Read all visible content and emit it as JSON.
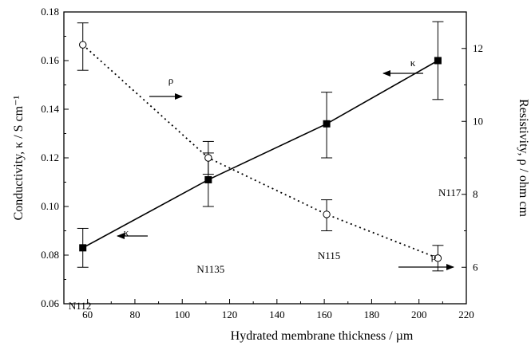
{
  "chart_data": {
    "type": "line",
    "xlabel": "Hydrated membrane thickness / µm",
    "ylabel_left": "Conductivity, κ / S cm⁻¹",
    "ylabel_right": "Resistivity, ρ / ohm cm",
    "xlim": [
      50,
      220
    ],
    "ylim_left": [
      0.06,
      0.18
    ],
    "ylim_right": [
      5,
      13
    ],
    "x_ticks": [
      "60",
      "80",
      "100",
      "120",
      "140",
      "160",
      "180",
      "200",
      "220"
    ],
    "y_left_ticks": [
      "0.06",
      "0.08",
      "0.10",
      "0.12",
      "0.14",
      "0.16",
      "0.18"
    ],
    "y_right_ticks": [
      "6",
      "8",
      "10",
      "12"
    ],
    "grid": false,
    "series": [
      {
        "name": "κ",
        "axis": "left",
        "marker": "filled-square",
        "line": "solid",
        "x": [
          58,
          111,
          161,
          208
        ],
        "y": [
          0.083,
          0.111,
          0.134,
          0.16
        ],
        "err_low": [
          0.075,
          0.1,
          0.12,
          0.144
        ],
        "err_high": [
          0.091,
          0.122,
          0.147,
          0.176
        ]
      },
      {
        "name": "ρ",
        "axis": "right",
        "marker": "open-circle",
        "line": "dotted",
        "x": [
          58,
          111,
          161,
          208
        ],
        "y": [
          12.1,
          9.0,
          7.45,
          6.25
        ],
        "err_low": [
          11.4,
          8.55,
          7.0,
          5.9
        ],
        "err_high": [
          12.7,
          9.45,
          7.85,
          6.6
        ]
      }
    ],
    "point_labels": [
      "N112",
      "N1135",
      "N115",
      "N117"
    ],
    "annotations": [
      {
        "text": "κ",
        "arrow": "left",
        "series": "κ"
      },
      {
        "text": "κ",
        "arrow": "left",
        "series": "κ"
      },
      {
        "text": "ρ",
        "arrow": "right",
        "series": "ρ"
      },
      {
        "text": "ρ",
        "arrow": "right",
        "series": "ρ"
      }
    ]
  }
}
